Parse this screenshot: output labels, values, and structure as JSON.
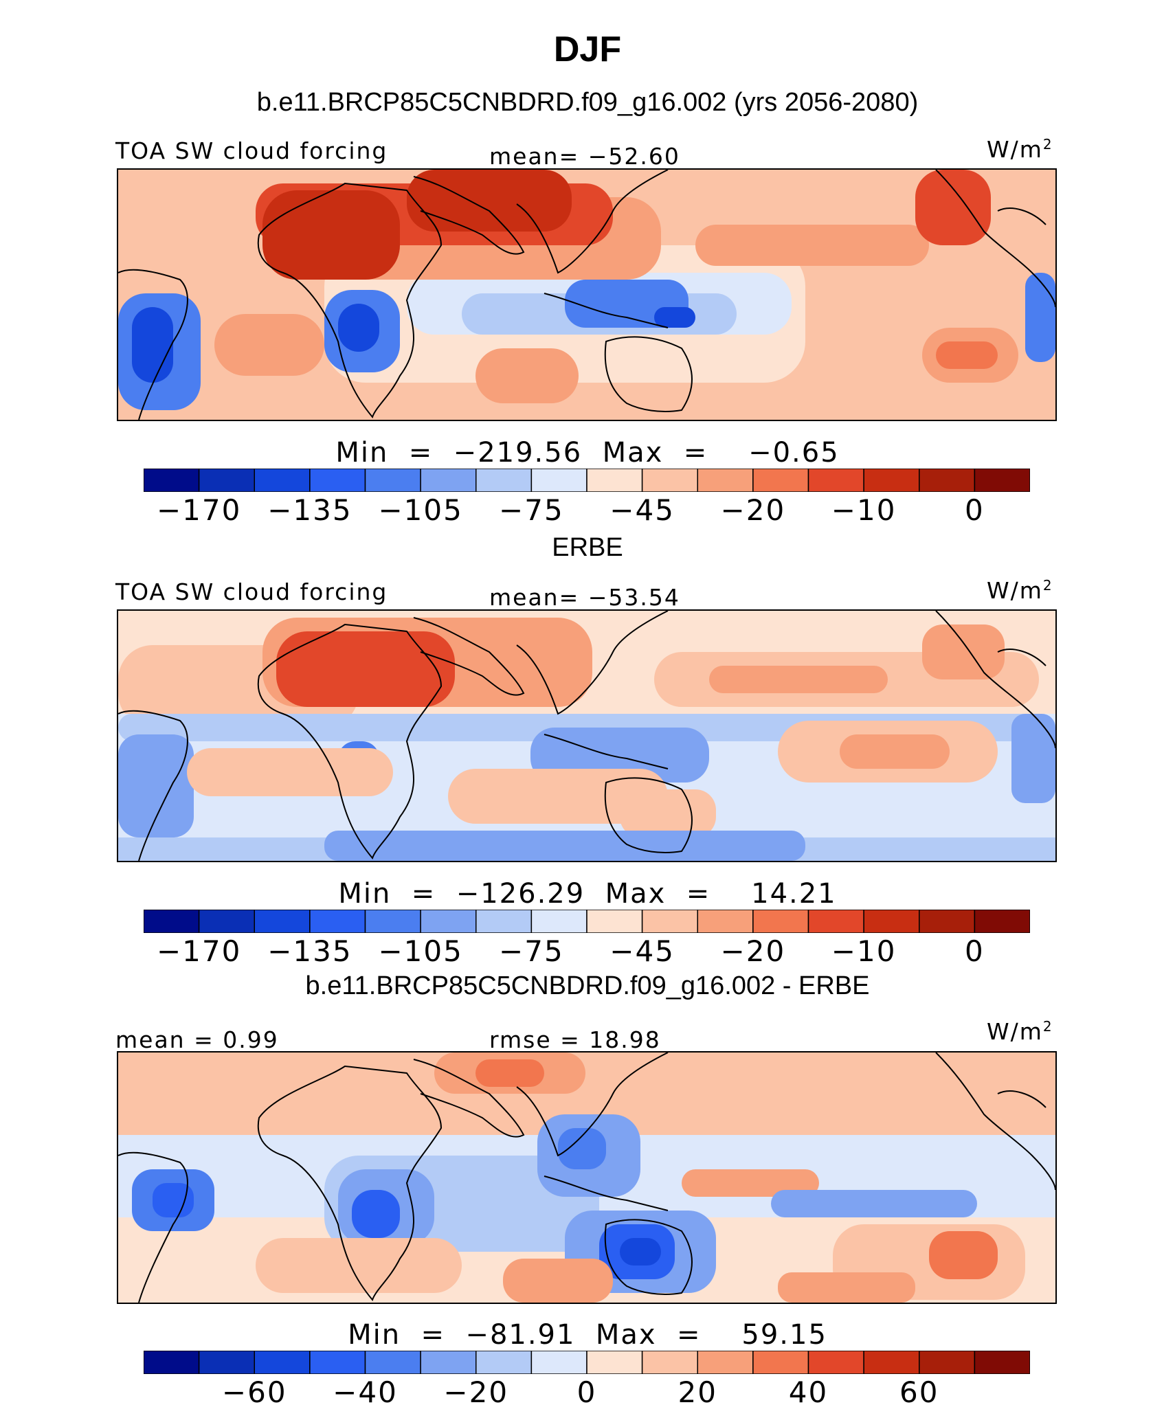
{
  "title": "DJF",
  "panels": [
    {
      "heading": "b.e11.BRCP85C5CNBDRD.f09_g16.002 (yrs 2056-2080)",
      "left_label": "TOA SW cloud forcing",
      "center_label": "mean= −52.60",
      "units": "W/m",
      "units_sup": "2",
      "minmax": "Min  =  −219.56  Max  =    −0.65",
      "colorbar_ticks": [
        "−170",
        "−135",
        "−105",
        "−75",
        "−45",
        "−20",
        "−10",
        "0"
      ],
      "colorbar_colors": [
        "#000c8a",
        "#0a2fb5",
        "#1447dc",
        "#2a5ff2",
        "#4b7ef0",
        "#7ea3f2",
        "#b3cbf6",
        "#dde8fb",
        "#fde3d2",
        "#fbc3a6",
        "#f7a07a",
        "#f2764e",
        "#e2472a",
        "#c82e12",
        "#a71f0a",
        "#800b05"
      ],
      "map_variant": "model"
    },
    {
      "heading": "ERBE",
      "left_label": "TOA SW cloud forcing",
      "center_label": "mean= −53.54",
      "units": "W/m",
      "units_sup": "2",
      "minmax": "Min  =  −126.29  Max  =    14.21",
      "colorbar_ticks": [
        "−170",
        "−135",
        "−105",
        "−75",
        "−45",
        "−20",
        "−10",
        "0"
      ],
      "colorbar_colors": [
        "#000c8a",
        "#0a2fb5",
        "#1447dc",
        "#2a5ff2",
        "#4b7ef0",
        "#7ea3f2",
        "#b3cbf6",
        "#dde8fb",
        "#fde3d2",
        "#fbc3a6",
        "#f7a07a",
        "#f2764e",
        "#e2472a",
        "#c82e12",
        "#a71f0a",
        "#800b05"
      ],
      "map_variant": "obs"
    },
    {
      "heading": "b.e11.BRCP85C5CNBDRD.f09_g16.002 - ERBE",
      "left_label": "mean =    0.99",
      "center_label": "rmse =   18.98",
      "units": "W/m",
      "units_sup": "2",
      "minmax": "Min  =  −81.91  Max  =    59.15",
      "colorbar_ticks": [
        "−60",
        "−40",
        "−20",
        "0",
        "20",
        "40",
        "60"
      ],
      "colorbar_colors": [
        "#000c8a",
        "#0a2fb5",
        "#1447dc",
        "#2a5ff2",
        "#4b7ef0",
        "#7ea3f2",
        "#b3cbf6",
        "#dde8fb",
        "#fde3d2",
        "#fbc3a6",
        "#f7a07a",
        "#f2764e",
        "#e2472a",
        "#c82e12",
        "#a71f0a",
        "#800b05"
      ],
      "map_variant": "diff"
    }
  ]
}
